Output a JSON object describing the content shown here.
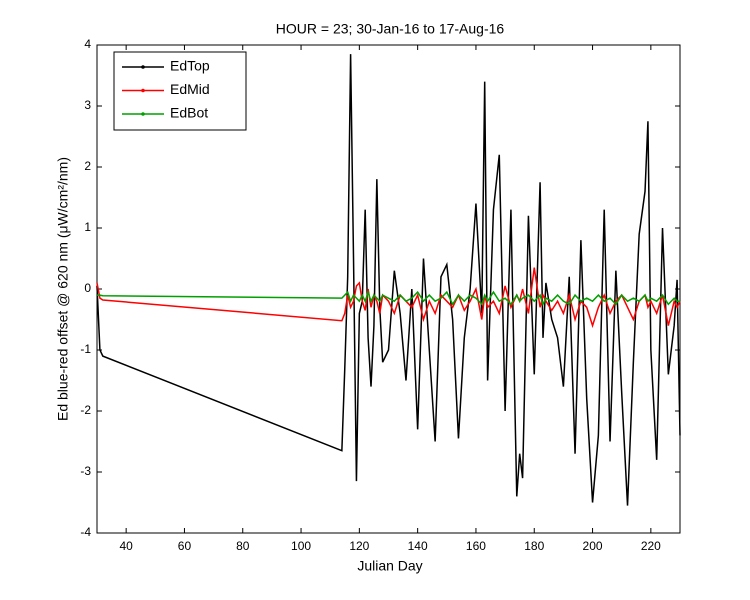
{
  "chart_data": {
    "type": "line",
    "title": "HOUR = 23; 30-Jan-16 to 17-Aug-16",
    "x_label": "Julian Day",
    "y_label": "Ed blue-red offset @ 620 nm (μW/cm²/nm)",
    "x": [
      30,
      31,
      32,
      114,
      115,
      116,
      117,
      118,
      119,
      120,
      121,
      122,
      123,
      124,
      125,
      126,
      127,
      128,
      130,
      132,
      134,
      136,
      138,
      140,
      142,
      144,
      146,
      148,
      150,
      152,
      154,
      156,
      158,
      160,
      162,
      163,
      164,
      166,
      168,
      170,
      172,
      174,
      175,
      176,
      178,
      180,
      182,
      183,
      184,
      186,
      188,
      190,
      192,
      194,
      196,
      198,
      200,
      202,
      204,
      206,
      208,
      210,
      212,
      214,
      216,
      218,
      219,
      220,
      222,
      224,
      226,
      228,
      229,
      230
    ],
    "series": [
      {
        "name": "EdTop",
        "color": "#000000",
        "values": [
          0.05,
          -1.0,
          -1.1,
          -2.65,
          -1.3,
          0.2,
          3.85,
          0.5,
          -3.15,
          -0.4,
          -0.2,
          1.3,
          -0.8,
          -1.6,
          -0.6,
          1.8,
          -0.3,
          -1.2,
          -1.0,
          0.3,
          -0.4,
          -1.5,
          0.0,
          -2.3,
          0.5,
          -1.0,
          -2.5,
          0.2,
          0.4,
          -0.5,
          -2.45,
          -0.8,
          0.0,
          1.4,
          -0.4,
          3.4,
          -1.5,
          1.3,
          2.2,
          -2.0,
          1.3,
          -3.4,
          -2.7,
          -3.1,
          1.2,
          -1.4,
          1.75,
          -0.8,
          0.1,
          -0.5,
          -0.8,
          -1.6,
          0.2,
          -2.7,
          0.8,
          -1.8,
          -3.5,
          -2.4,
          1.3,
          -2.5,
          0.3,
          -1.7,
          -3.55,
          -1.2,
          0.9,
          1.6,
          2.75,
          -1.0,
          -2.8,
          1.0,
          -1.4,
          -0.6,
          0.15,
          -2.4
        ]
      },
      {
        "name": "EdMid",
        "color": "#ff0000",
        "values": [
          0.1,
          -0.15,
          -0.18,
          -0.52,
          -0.4,
          -0.1,
          -0.3,
          -0.2,
          0.05,
          0.1,
          -0.2,
          -0.35,
          0.0,
          -0.3,
          -0.1,
          -0.2,
          -0.4,
          -0.1,
          -0.2,
          -0.4,
          -0.1,
          -0.2,
          -0.3,
          -0.1,
          -0.5,
          -0.2,
          -0.4,
          -0.1,
          -0.2,
          -0.3,
          -0.1,
          -0.35,
          -0.2,
          0.0,
          -0.5,
          -0.1,
          -0.3,
          -0.2,
          -0.4,
          0.05,
          -0.3,
          -0.1,
          -0.2,
          0.0,
          -0.4,
          0.35,
          -0.3,
          -0.1,
          -0.2,
          -0.35,
          -0.2,
          -0.4,
          -0.1,
          -0.5,
          -0.2,
          -0.3,
          -0.6,
          -0.3,
          -0.1,
          -0.4,
          -0.2,
          -0.1,
          -0.3,
          -0.5,
          -0.2,
          -0.1,
          -0.3,
          -0.2,
          -0.4,
          -0.1,
          -0.6,
          -0.2,
          -0.3,
          -0.2
        ]
      },
      {
        "name": "EdBot",
        "color": "#00a000",
        "values": [
          -0.1,
          -0.1,
          -0.11,
          -0.15,
          -0.1,
          -0.05,
          -0.2,
          -0.1,
          -0.15,
          -0.2,
          -0.1,
          -0.2,
          -0.05,
          -0.2,
          -0.1,
          -0.15,
          -0.2,
          -0.1,
          -0.15,
          -0.2,
          -0.1,
          -0.2,
          -0.15,
          -0.05,
          -0.2,
          -0.1,
          -0.2,
          -0.15,
          -0.05,
          -0.25,
          -0.1,
          -0.2,
          -0.1,
          -0.15,
          -0.25,
          -0.1,
          -0.2,
          -0.05,
          -0.2,
          -0.15,
          -0.25,
          -0.1,
          -0.2,
          -0.15,
          -0.1,
          -0.2,
          -0.1,
          -0.25,
          -0.15,
          -0.2,
          -0.1,
          -0.2,
          -0.25,
          -0.1,
          -0.2,
          -0.15,
          -0.2,
          -0.1,
          -0.2,
          -0.15,
          -0.25,
          -0.1,
          -0.2,
          -0.15,
          -0.2,
          -0.1,
          -0.2,
          -0.15,
          -0.2,
          -0.1,
          -0.25,
          -0.15,
          -0.2,
          -0.2
        ]
      }
    ],
    "xlim": [
      30,
      230
    ],
    "xticks": [
      40,
      60,
      80,
      100,
      120,
      140,
      160,
      180,
      200,
      220
    ],
    "ylim": [
      -4,
      4
    ],
    "yticks": [
      -4,
      -3,
      -2,
      -1,
      0,
      1,
      2,
      3,
      4
    ],
    "grid": false,
    "legend": "upper left"
  }
}
